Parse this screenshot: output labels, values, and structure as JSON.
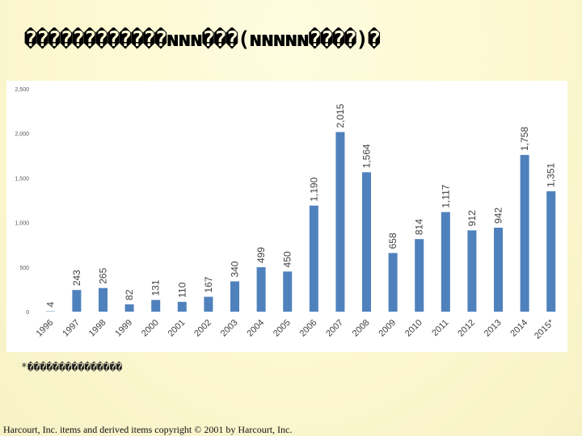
{
  "title": "������������ɴɴɴ���(ɴɴɴɴɴ����)�",
  "footnote": "*���������������",
  "copyright": "Harcourt, Inc. items and derived items copyright © 2001 by Harcourt, Inc.",
  "colors": {
    "bar": "#4f81bd",
    "axis_text": "#595959",
    "label_text": "#404040"
  },
  "chart_data": {
    "type": "bar",
    "title": "",
    "xlabel": "",
    "ylabel": "",
    "categories": [
      "1996",
      "1997",
      "1998",
      "1999",
      "2000",
      "2001",
      "2002",
      "2003",
      "2004",
      "2005",
      "2006",
      "2007",
      "2008",
      "2009",
      "2010",
      "2011",
      "2012",
      "2013",
      "2014",
      "2015*"
    ],
    "values": [
      4,
      243,
      265,
      82,
      131,
      110,
      167,
      340,
      499,
      450,
      1190,
      2015,
      1564,
      658,
      814,
      1117,
      912,
      942,
      1758,
      1351
    ],
    "data_labels": [
      "4",
      "243",
      "265",
      "82",
      "131",
      "110",
      "167",
      "340",
      "499",
      "450",
      "1,190",
      "2,015",
      "1,564",
      "658",
      "814",
      "1,117",
      "912",
      "942",
      "1,758",
      "1,351"
    ],
    "ylim": [
      0,
      2500
    ],
    "yticks": [
      0,
      500,
      1000,
      1500,
      2000,
      2500
    ],
    "ytick_labels": [
      "0",
      "500",
      "1,000",
      "1,500",
      "2,000",
      "2,500"
    ],
    "grid": false,
    "legend": "none"
  }
}
